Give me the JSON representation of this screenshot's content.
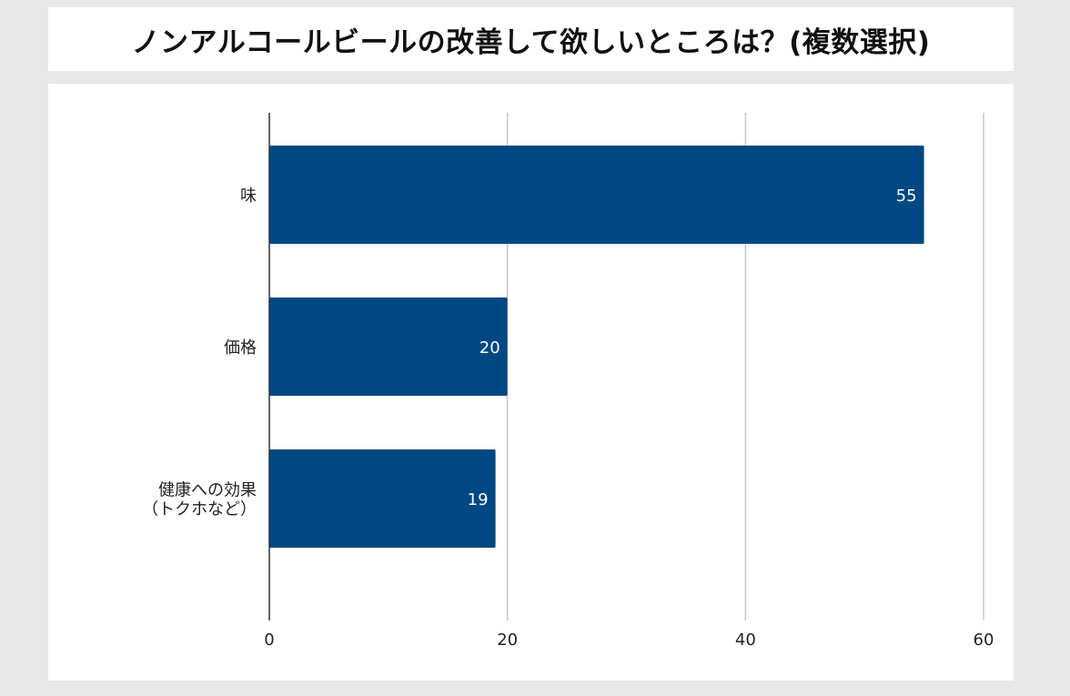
{
  "chart_data": {
    "type": "bar",
    "orientation": "horizontal",
    "title": "ノンアルコールビールの改善して欲しいところは？(複数選択)",
    "categories": [
      [
        "味"
      ],
      [
        "価格"
      ],
      [
        "健康への効果",
        "（トクホなど）"
      ]
    ],
    "values": [
      55,
      20,
      19
    ],
    "xticks": [
      "0",
      "20",
      "40",
      "60"
    ],
    "xlim": [
      0,
      60
    ],
    "grid": "vertical",
    "bar_color": "#004884",
    "label_color": "#ffffff",
    "legend": "none"
  }
}
